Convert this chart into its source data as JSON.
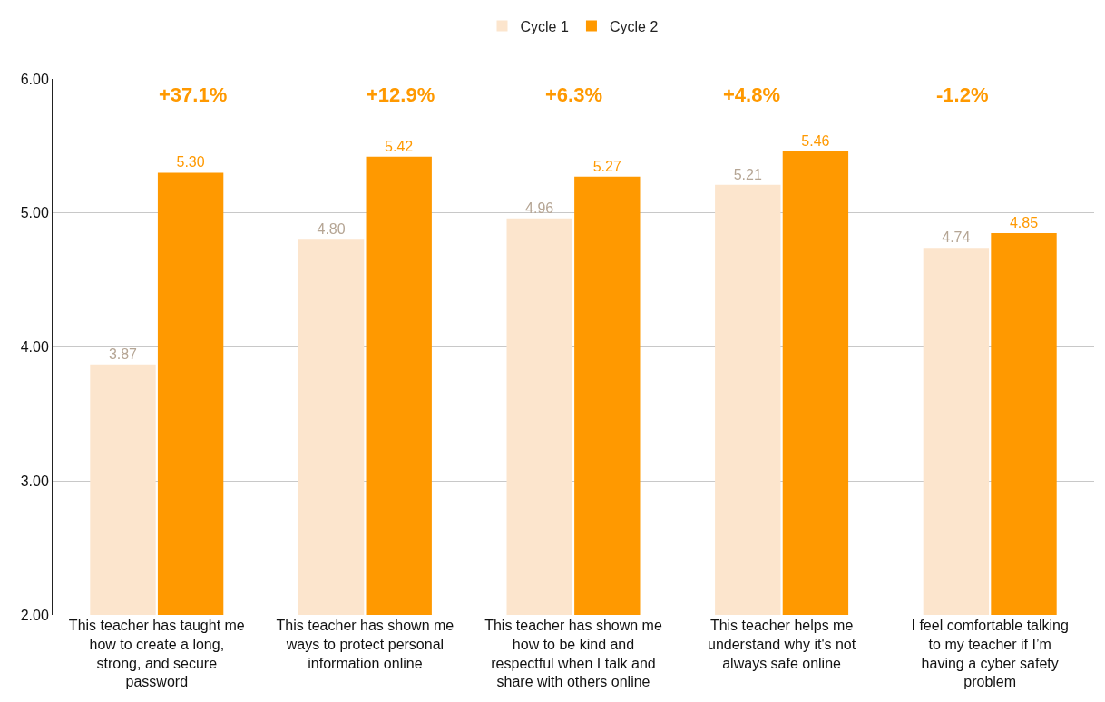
{
  "chart_data": {
    "type": "bar",
    "categories": [
      "This teacher has taught me how to create a long, strong, and secure password",
      "This teacher has shown me ways to protect personal information online",
      "This teacher has shown me how to be kind and respectful when I talk and share with others online",
      "This teacher helps me understand why it's not always safe online",
      "I feel comfortable talking to my teacher if I’m having a cyber safety problem"
    ],
    "series": [
      {
        "name": "Cycle 1",
        "color": "#fce5cd",
        "values": [
          3.87,
          4.8,
          4.96,
          5.21,
          4.74
        ],
        "value_labels": [
          "3.87",
          "4.80",
          "4.96",
          "5.21",
          "4.74"
        ]
      },
      {
        "name": "Cycle 2",
        "color": "#ff9900",
        "values": [
          5.3,
          5.42,
          5.27,
          5.46,
          4.85
        ],
        "value_labels": [
          "5.30",
          "5.42",
          "5.27",
          "5.46",
          "4.85"
        ]
      }
    ],
    "annotations": [
      "+37.1%",
      "+12.9%",
      "+6.3%",
      "+4.8%",
      "-1.2%"
    ],
    "ylim": [
      2,
      6
    ],
    "yticks": [
      {
        "value": 2,
        "label": "2.00"
      },
      {
        "value": 3,
        "label": "3.00"
      },
      {
        "value": 4,
        "label": "4.00"
      },
      {
        "value": 5,
        "label": "5.00"
      },
      {
        "value": 6,
        "label": "6.00"
      }
    ],
    "grid": "y",
    "legend": "top"
  }
}
